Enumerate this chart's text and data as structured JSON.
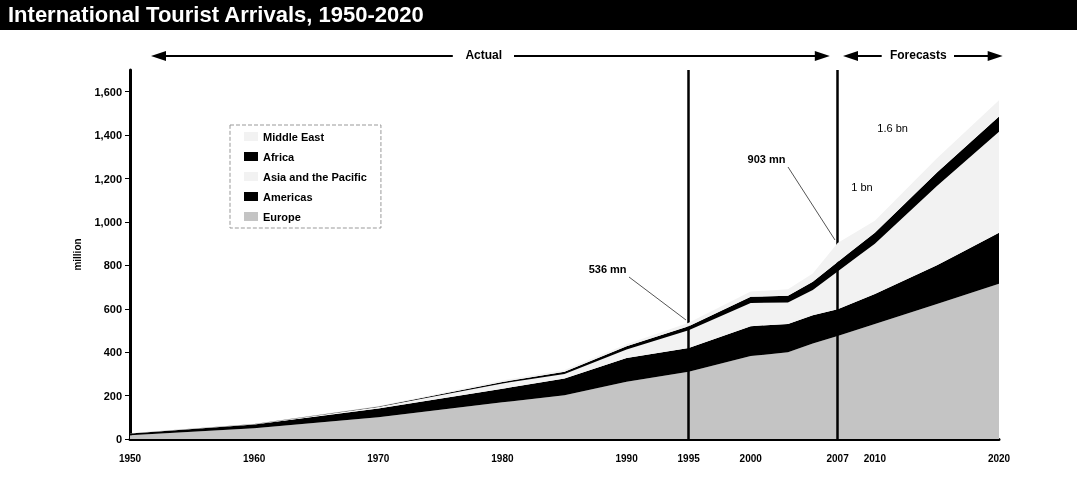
{
  "chart_data": {
    "type": "area",
    "title": "International Tourist Arrivals, 1950-2020",
    "ylabel": "million",
    "stacked": true,
    "x": [
      1950,
      1960,
      1970,
      1980,
      1985,
      1990,
      1995,
      2000,
      2003,
      2005,
      2007,
      2010,
      2015,
      2020
    ],
    "series": [
      {
        "name": "Europe",
        "color": "#c4c4c4",
        "values": [
          17,
          50,
          100,
          169,
          201,
          264,
          310,
          382,
          400,
          440,
          474,
          530,
          622,
          715
        ]
      },
      {
        "name": "Americas",
        "color": "#000000",
        "values": [
          8,
          17,
          40,
          63,
          78,
          109,
          109,
          138,
          130,
          130,
          124,
          138,
          178,
          235
        ]
      },
      {
        "name": "Asia and the Pacific",
        "color": "#f2f2f2",
        "values": [
          1,
          1,
          7,
          24,
          21,
          39,
          82,
          107,
          99,
          117,
          174,
          232,
          366,
          465
        ]
      },
      {
        "name": "Africa",
        "color": "#000000",
        "values": [
          1,
          1,
          3,
          7,
          10,
          15,
          19,
          28,
          31,
          37,
          44,
          50,
          62,
          71
        ]
      },
      {
        "name": "Middle East",
        "color": "#f2f2f2",
        "values": [
          0,
          1,
          2,
          7,
          8,
          10,
          16,
          24,
          30,
          38,
          87,
          55,
          65,
          75
        ]
      }
    ],
    "xlim": [
      1950,
      2020
    ],
    "xticks": [
      1950,
      1960,
      1970,
      1980,
      1990,
      1995,
      2000,
      2007,
      2010,
      2020
    ],
    "ylim": [
      0,
      1700
    ],
    "yticks": [
      0,
      200,
      400,
      600,
      800,
      {
        "value": 1000,
        "label": "1,000"
      },
      {
        "value": 1200,
        "label": "1,200"
      },
      {
        "value": 1400,
        "label": "1,400"
      },
      {
        "value": 1600,
        "label": "1,600"
      }
    ],
    "grid": false,
    "legend": "top left",
    "marker": "none",
    "ref_lines": [
      {
        "axis": "x",
        "value": 1995,
        "color": "#000000"
      },
      {
        "axis": "x",
        "value": 2007,
        "color": "#000000"
      }
    ],
    "annotations": [
      "Actual",
      "Forecasts",
      {
        "text": "536 mn",
        "x": 1995,
        "y": 536
      },
      {
        "text": "903 mn",
        "x": 2007,
        "y": 903
      },
      "1 bn",
      "1.6 bn"
    ]
  }
}
